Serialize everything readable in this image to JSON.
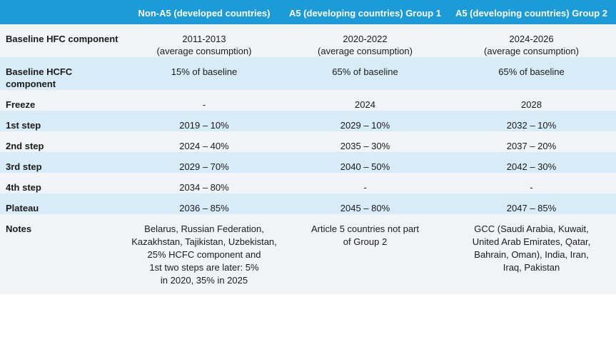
{
  "table": {
    "header": [
      "Non-A5 (developed countries)",
      "A5 (developing countries) Group 1",
      "A5 (developing countries) Group 2"
    ],
    "rows": [
      [
        "Baseline HFC component",
        "2011-2013\n(average consumption)",
        "2020-2022\n(average consumption)",
        "2024-2026\n(average consumption)"
      ],
      [
        "Baseline HCFC component",
        "15% of baseline",
        "65% of baseline",
        "65% of baseline"
      ],
      [
        "Freeze",
        "-",
        "2024",
        "2028"
      ],
      [
        "1st step",
        "2019 – 10%",
        "2029 – 10%",
        "2032 – 10%"
      ],
      [
        "2nd step",
        "2024 – 40%",
        "2035 – 30%",
        "2037 – 20%"
      ],
      [
        "3rd step",
        "2029 – 70%",
        "2040 – 50%",
        "2042 – 30%"
      ],
      [
        "4th step",
        "2034 – 80%",
        "-",
        "-"
      ],
      [
        "Plateau",
        "2036 – 85%",
        "2045 – 80%",
        "2047 – 85%"
      ],
      [
        "Notes",
        "Belarus, Russian Federation,\nKazakhstan, Tajikistan, Uzbekistan,\n25% HCFC component and\n1st two steps are later: 5%\nin 2020, 35% in 2025",
        "Article 5 countries not part\nof Group 2",
        "GCC (Saudi Arabia, Kuwait,\nUnited Arab Emirates, Qatar,\nBahrain, Oman), India, Iran,\nIraq, Pakistan"
      ]
    ]
  }
}
